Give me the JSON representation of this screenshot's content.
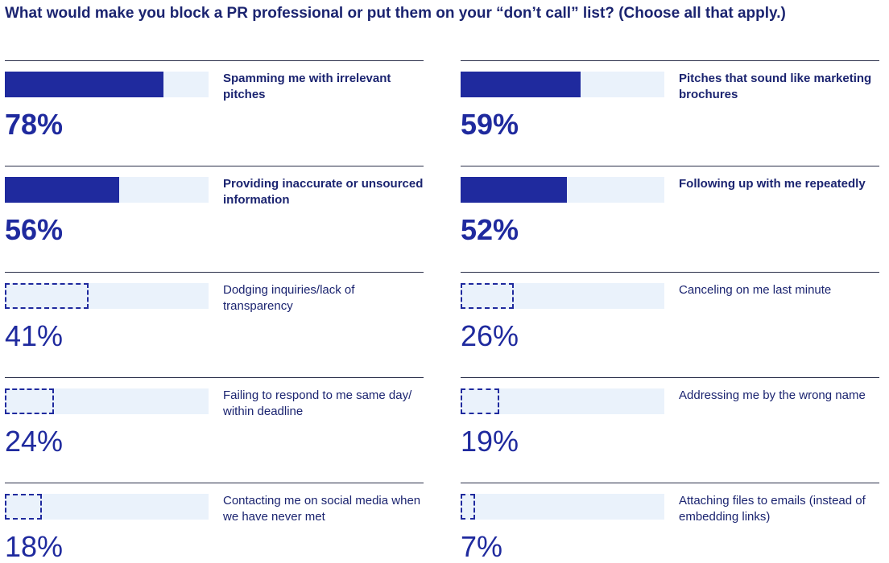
{
  "chart_data": {
    "type": "bar",
    "title": "What would make you block a PR professional or put them on your “don’t call” list? (Choose all that apply.)",
    "categories": [
      "Spamming me with irrelevant pitches",
      "Pitches that sound like marketing brochures",
      "Providing inaccurate or unsourced information",
      "Following up with me repeatedly",
      "Dodging inquiries/lack of transparency",
      "Canceling on me last minute",
      "Failing to respond to me same day/ within deadline",
      "Addressing me by the wrong name",
      "Contacting me on social media when we have never met",
      "Attaching files to emails (instead of embedding links)"
    ],
    "values": [
      78,
      59,
      56,
      52,
      41,
      26,
      24,
      19,
      18,
      7
    ],
    "value_labels": [
      "78%",
      "59%",
      "56%",
      "52%",
      "41%",
      "26%",
      "24%",
      "19%",
      "18%",
      "7%"
    ],
    "bar_styles": [
      "solid",
      "solid",
      "solid",
      "solid",
      "dashed",
      "dashed",
      "dashed",
      "dashed",
      "dashed",
      "dashed"
    ],
    "xlim": [
      0,
      100
    ],
    "color": "#1f2a9e",
    "track_color": "#eaf2fb"
  }
}
